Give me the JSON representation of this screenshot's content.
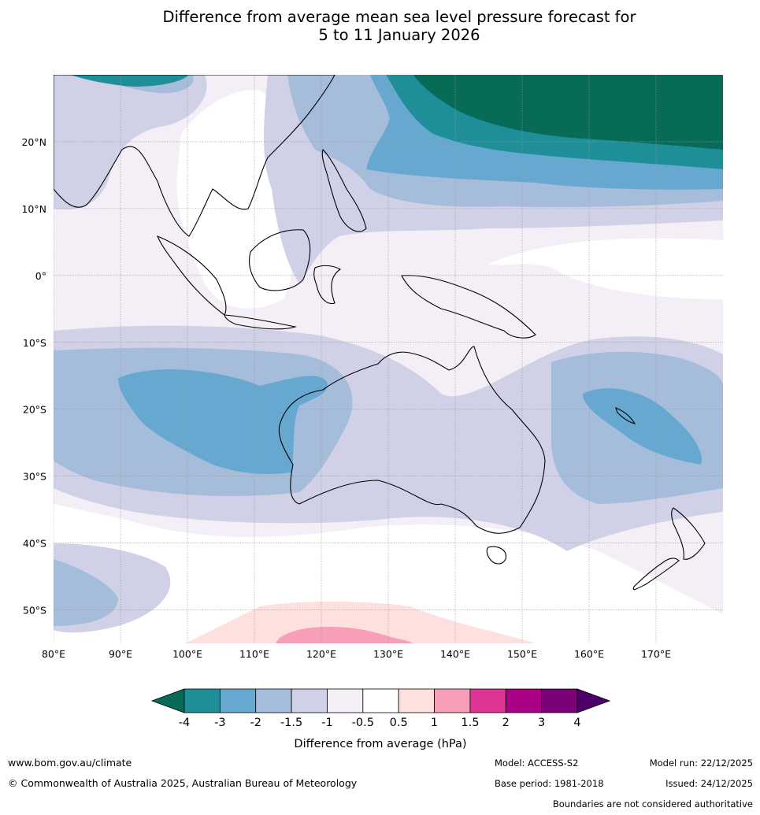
{
  "title": {
    "line1": "Difference from average mean sea level pressure forecast for",
    "line2": "5 to 11 January 2026"
  },
  "map": {
    "lat_labels": [
      "20°N",
      "10°N",
      "0°",
      "10°S",
      "20°S",
      "30°S",
      "40°S",
      "50°S"
    ],
    "lon_labels": [
      "80°E",
      "90°E",
      "100°E",
      "110°E",
      "120°E",
      "130°E",
      "140°E",
      "150°E",
      "160°E",
      "170°E"
    ],
    "lat_values": [
      20,
      10,
      0,
      -10,
      -20,
      -30,
      -40,
      -50
    ],
    "lon_values": [
      80,
      90,
      100,
      110,
      120,
      130,
      140,
      150,
      160,
      170
    ],
    "extent": {
      "lon_min": 80,
      "lon_max": 180,
      "lat_min": -55,
      "lat_max": 30
    }
  },
  "legend": {
    "title": "Difference from average (hPa)",
    "ticks": [
      "-4",
      "-3",
      "-2",
      "-1.5",
      "-1",
      "-0.5",
      "0.5",
      "1",
      "1.5",
      "2",
      "3",
      "4"
    ],
    "colors": [
      "#076b57",
      "#1e8f98",
      "#66a8cf",
      "#a6bcdb",
      "#d0d1e6",
      "#f4eef6",
      "#ffffff",
      "#fee0df",
      "#f79fb8",
      "#dd3496",
      "#ab0086",
      "#7c0077",
      "#4d006a"
    ]
  },
  "footer": {
    "website": "www.bom.gov.au/climate",
    "copyright": "© Commonwealth of Australia 2025, Australian Bureau of Meteorology",
    "model": "Model: ACCESS-S2",
    "base_period": "Base period: 1981-2018",
    "model_run": "Model run: 22/12/2025",
    "issued": "Issued: 24/12/2025",
    "disclaimer": "Boundaries are not considered authoritative"
  }
}
